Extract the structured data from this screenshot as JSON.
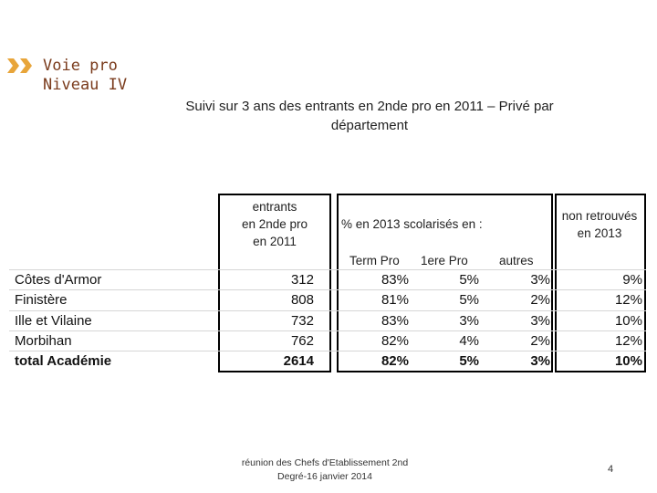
{
  "section": {
    "line1": "Voie pro",
    "line2": "Niveau IV",
    "marker_color": "#e8a53a"
  },
  "title": {
    "line1": "Suivi sur 3 ans des entrants en 2nde pro en 2011 – Privé par",
    "line2": "département"
  },
  "table": {
    "header_entrants": [
      "entrants",
      "en 2nde pro",
      "en 2011"
    ],
    "header_scolarises": "% en 2013 scolarisés en :",
    "header_non_retrouves": [
      "non retrouvés",
      "en 2013"
    ],
    "subheaders": [
      "Term Pro",
      "1ere Pro",
      "autres"
    ],
    "rows": [
      {
        "name": "Côtes d'Armor",
        "entrants": "312",
        "term_pro": "83%",
        "premiere_pro": "5%",
        "autres": "3%",
        "non_retrouves": "9%"
      },
      {
        "name": "Finistère",
        "entrants": "808",
        "term_pro": "81%",
        "premiere_pro": "5%",
        "autres": "2%",
        "non_retrouves": "12%"
      },
      {
        "name": "Ille et Vilaine",
        "entrants": "732",
        "term_pro": "83%",
        "premiere_pro": "3%",
        "autres": "3%",
        "non_retrouves": "10%"
      },
      {
        "name": "Morbihan",
        "entrants": "762",
        "term_pro": "82%",
        "premiere_pro": "4%",
        "autres": "2%",
        "non_retrouves": "12%"
      }
    ],
    "total": {
      "name": "total Académie",
      "entrants": "2614",
      "term_pro": "82%",
      "premiere_pro": "5%",
      "autres": "3%",
      "non_retrouves": "10%"
    }
  },
  "footer": {
    "line1": "réunion des Chefs d'Etablissement 2nd",
    "line2": "Degré-16 janvier 2014",
    "page_number": "4"
  }
}
